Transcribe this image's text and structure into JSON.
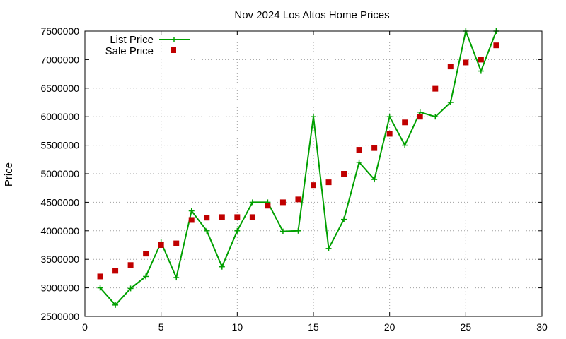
{
  "chart_data": {
    "type": "line",
    "title": "Nov 2024 Los Altos Home Prices",
    "xlabel": "",
    "ylabel": "Price",
    "xlim": [
      0,
      30
    ],
    "ylim": [
      2500000,
      7500000
    ],
    "xticks": [
      0,
      5,
      10,
      15,
      20,
      25,
      30
    ],
    "yticks": [
      2500000,
      3000000,
      3500000,
      4000000,
      4500000,
      5000000,
      5500000,
      6000000,
      6500000,
      7000000,
      7500000
    ],
    "grid": true,
    "legend_position": "top-left",
    "series": [
      {
        "name": "List Price",
        "style": "line+cross",
        "color": "#00a000",
        "x": [
          1,
          2,
          3,
          4,
          5,
          6,
          7,
          8,
          9,
          10,
          11,
          12,
          13,
          14,
          15,
          16,
          17,
          18,
          19,
          20,
          21,
          22,
          23,
          24,
          25,
          26,
          27
        ],
        "y": [
          3000000,
          2700000,
          2990000,
          3200000,
          3800000,
          3180000,
          4350000,
          4000000,
          3370000,
          4000000,
          4500000,
          4500000,
          3990000,
          4000000,
          6000000,
          3690000,
          4200000,
          5200000,
          4900000,
          6000000,
          5500000,
          6080000,
          6000000,
          6250000,
          7500000,
          6800000,
          7500000
        ]
      },
      {
        "name": "Sale Price",
        "style": "square",
        "color": "#c00000",
        "x": [
          1,
          2,
          3,
          4,
          5,
          6,
          7,
          8,
          9,
          10,
          11,
          12,
          13,
          14,
          15,
          16,
          17,
          18,
          19,
          20,
          21,
          22,
          23,
          24,
          25,
          26,
          27
        ],
        "y": [
          3200000,
          3300000,
          3400000,
          3600000,
          3750000,
          3780000,
          4190000,
          4230000,
          4240000,
          4240000,
          4240000,
          4440000,
          4500000,
          4550000,
          4800000,
          4850000,
          5000000,
          5420000,
          5450000,
          5700000,
          5900000,
          6000000,
          6490000,
          6880000,
          6950000,
          7000000,
          7250000
        ]
      }
    ]
  }
}
